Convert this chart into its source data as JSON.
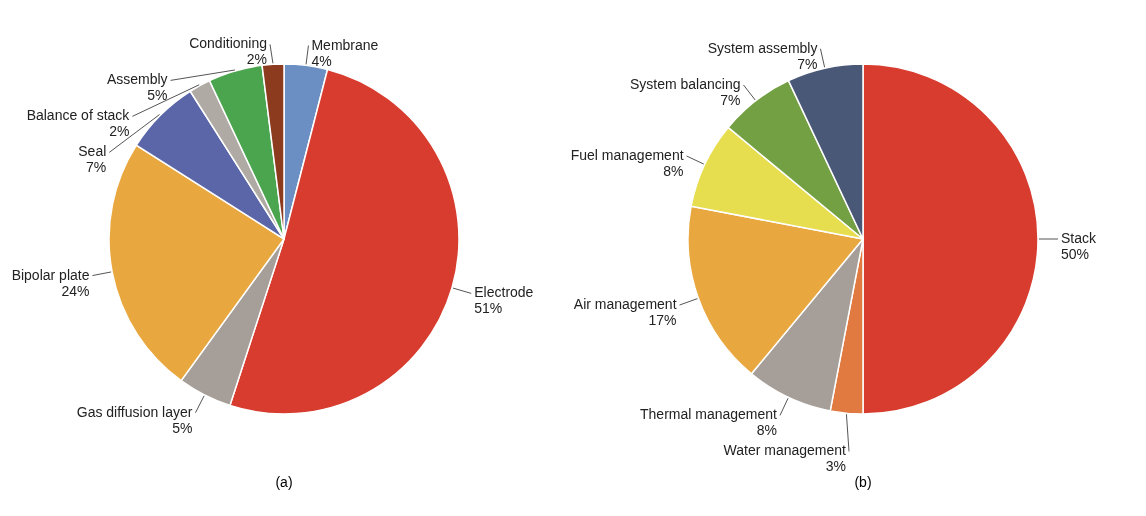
{
  "chart_data": [
    {
      "type": "pie",
      "title": "(a)",
      "categories": [
        "Membrane",
        "Electrode",
        "Gas diffusion layer",
        "Bipolar plate",
        "Seal",
        "Balance of stack",
        "Assembly",
        "Conditioning"
      ],
      "values": [
        4,
        51,
        5,
        24,
        7,
        2,
        5,
        2
      ],
      "value_labels": [
        "4%",
        "51%",
        "5%",
        "24%",
        "7%",
        "2%",
        "5%",
        "2%"
      ],
      "colors": [
        "#6b8fc2",
        "#d73c2f",
        "#a69e98",
        "#e9a83f",
        "#5a66a8",
        "#b0aaa5",
        "#4aa54e",
        "#8c3b1f"
      ],
      "legend": false
    },
    {
      "type": "pie",
      "title": "(b)",
      "categories": [
        "Stack",
        "Water management",
        "Thermal management",
        "Air management",
        "Fuel management",
        "System balancing",
        "System assembly"
      ],
      "values": [
        50,
        3,
        8,
        17,
        8,
        7,
        7
      ],
      "value_labels": [
        "50%",
        "3%",
        "8%",
        "17%",
        "8%",
        "7%",
        "7%"
      ],
      "colors": [
        "#d73c2f",
        "#e07a40",
        "#a69e98",
        "#e9a83f",
        "#e6de4f",
        "#74a044",
        "#4a5878"
      ],
      "legend": false
    }
  ]
}
